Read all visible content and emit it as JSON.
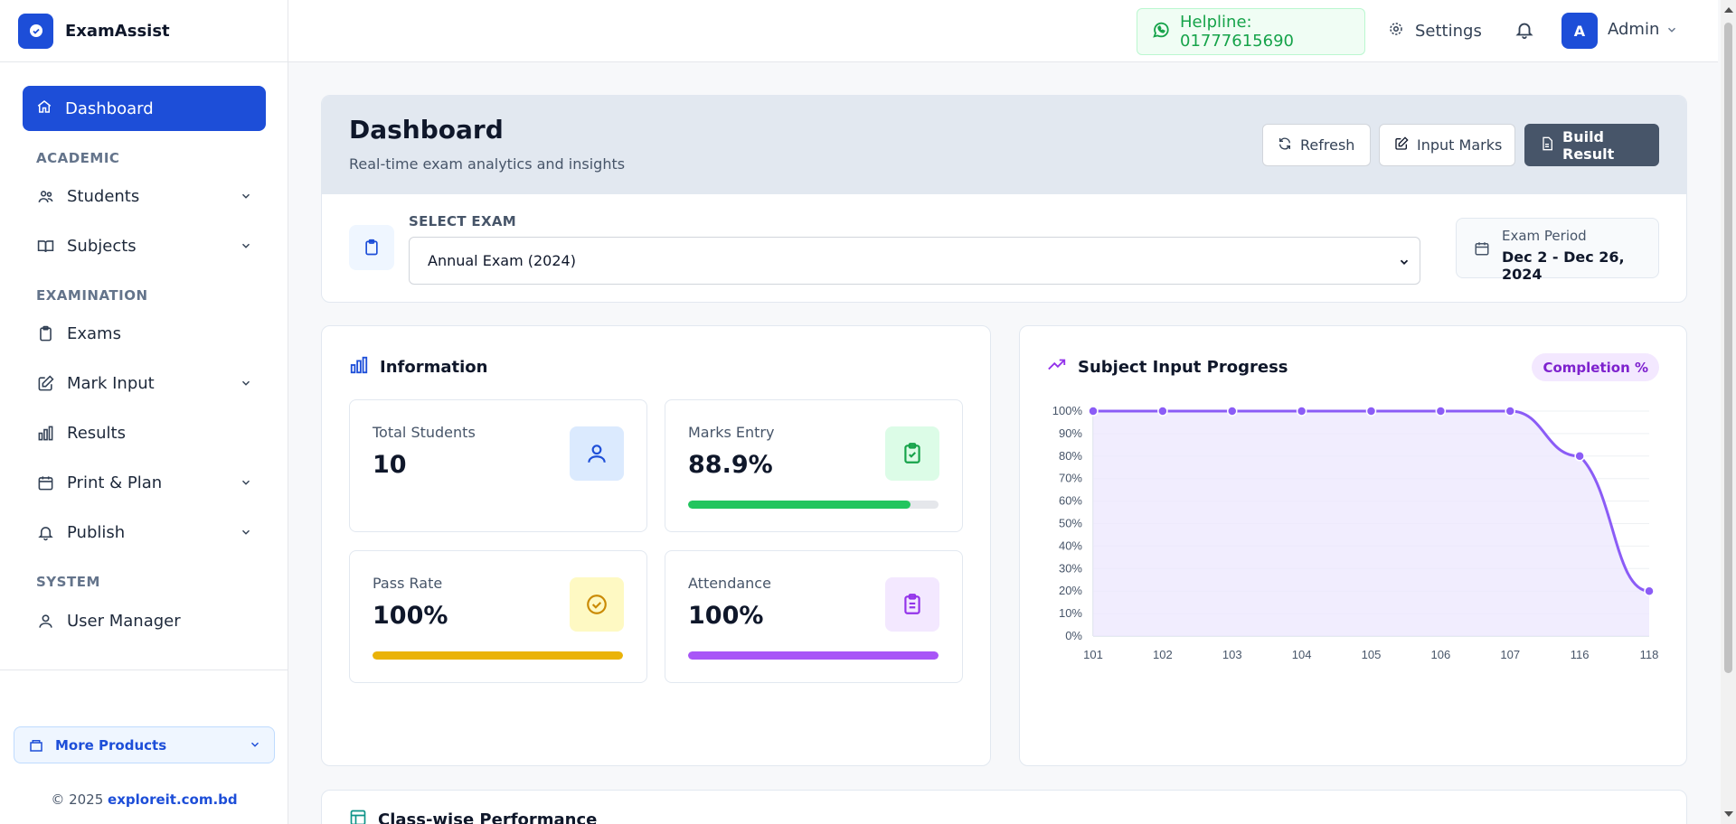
{
  "brand": {
    "name": "ExamAssist"
  },
  "topbar": {
    "helpline": "Helpline: 01777615690",
    "settings": "Settings",
    "avatar_initial": "A",
    "user": "Admin"
  },
  "sidebar": {
    "active": "Dashboard",
    "sections": {
      "academic": "ACADEMIC",
      "examination": "EXAMINATION",
      "system": "SYSTEM"
    },
    "items": {
      "students": "Students",
      "subjects": "Subjects",
      "exams": "Exams",
      "mark_input": "Mark Input",
      "results": "Results",
      "print_plan": "Print & Plan",
      "publish": "Publish",
      "user_manager": "User Manager"
    },
    "more_products": "More Products",
    "copyright_prefix": "© 2025 ",
    "copyright_link": "exploreit.com.bd"
  },
  "header": {
    "title": "Dashboard",
    "subtitle": "Real-time exam analytics and insights",
    "refresh": "Refresh",
    "input_marks": "Input Marks",
    "build_result": "Build Result",
    "select_label": "SELECT EXAM",
    "selected_exam": "Annual Exam (2024)",
    "period_label": "Exam Period",
    "period_value": "Dec 2 - Dec 26, 2024"
  },
  "information": {
    "title": "Information",
    "total_students": {
      "label": "Total Students",
      "value": "10"
    },
    "marks_entry": {
      "label": "Marks Entry",
      "value": "88.9%",
      "progress": 0.889
    },
    "pass_rate": {
      "label": "Pass Rate",
      "value": "100%",
      "progress": 1.0
    },
    "attendance": {
      "label": "Attendance",
      "value": "100%",
      "progress": 1.0
    }
  },
  "progress": {
    "title": "Subject Input Progress",
    "badge": "Completion %"
  },
  "class_wise": {
    "title": "Class-wise Performance"
  },
  "colors": {
    "primary": "#1d4ed8",
    "green": "#22c55e",
    "yellow": "#eab308",
    "purple": "#a855f7",
    "line": "#8b5cf6",
    "area": "#ede9fe"
  },
  "chart_data": {
    "type": "area",
    "title": "Subject Input Progress",
    "categories": [
      "101",
      "102",
      "103",
      "104",
      "105",
      "106",
      "107",
      "116",
      "118"
    ],
    "values": [
      100,
      100,
      100,
      100,
      100,
      100,
      100,
      80,
      20
    ],
    "ylim": [
      0,
      100
    ],
    "yticks": [
      "0%",
      "10%",
      "20%",
      "30%",
      "40%",
      "50%",
      "60%",
      "70%",
      "80%",
      "90%",
      "100%"
    ],
    "grid": true,
    "smooth": true
  }
}
